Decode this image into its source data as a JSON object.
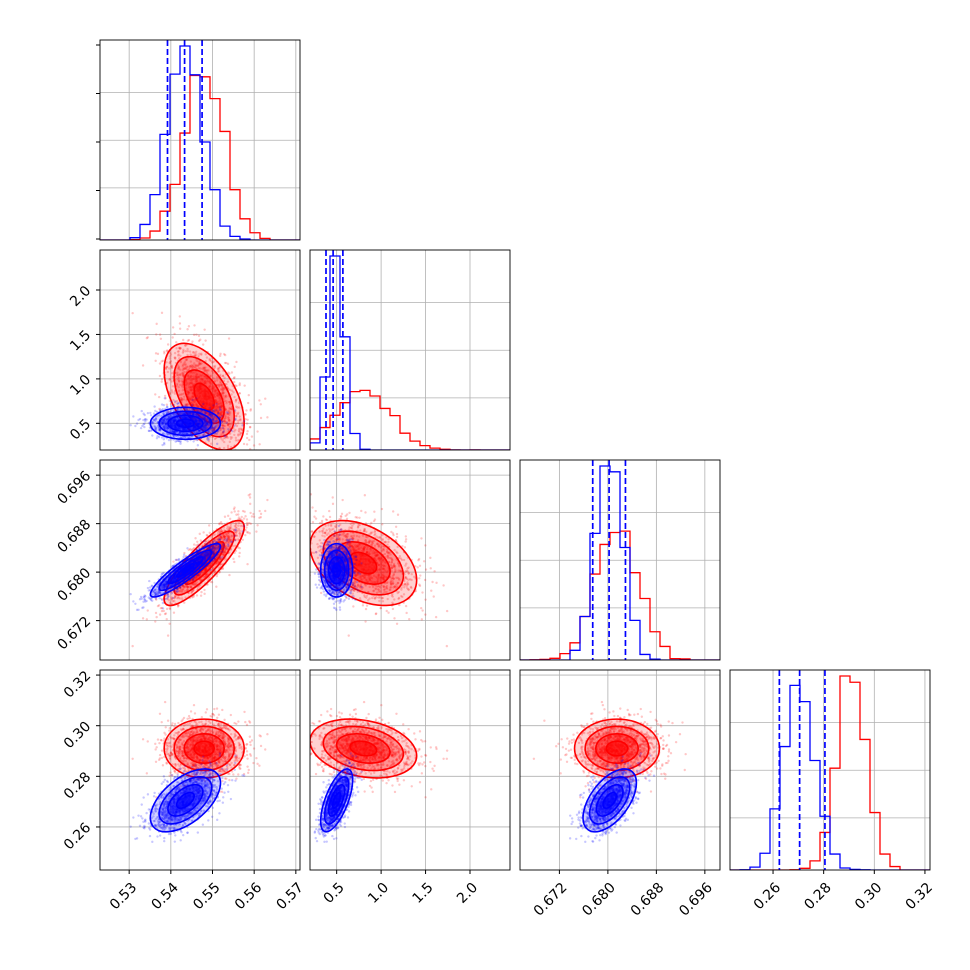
{
  "chart_data": {
    "type": "corner",
    "title": "",
    "grid": true,
    "colors": {
      "series_a": "#0000ff",
      "series_b": "#ff0000"
    },
    "parameters": [
      {
        "name": "",
        "range": [
          0.523,
          0.571
        ],
        "ticks": [
          0.53,
          0.54,
          0.55,
          0.56,
          0.57
        ],
        "tick_labels": [
          "0.53",
          "0.54",
          "0.55",
          "0.56",
          "0.57"
        ]
      },
      {
        "name": "",
        "range": [
          0.2,
          2.45
        ],
        "ticks": [
          0.5,
          1.0,
          1.5,
          2.0
        ],
        "tick_labels": [
          "0.5",
          "1.0",
          "1.5",
          "2.0"
        ]
      },
      {
        "name": "",
        "range": [
          0.6655,
          0.6985
        ],
        "ticks": [
          0.672,
          0.68,
          0.688,
          0.696
        ],
        "tick_labels": [
          "0.672",
          "0.680",
          "0.688",
          "0.696"
        ]
      },
      {
        "name": "",
        "range": [
          0.243,
          0.322
        ],
        "ticks": [
          0.26,
          0.28,
          0.3,
          0.32
        ],
        "tick_labels": [
          "0.26",
          "0.28",
          "0.30",
          "0.32"
        ]
      }
    ],
    "series": [
      {
        "name": "",
        "color": "#0000ff",
        "mean": [
          0.5435,
          0.5,
          0.6803,
          0.2705
        ],
        "sd": [
          0.0042,
          0.09,
          0.0022,
          0.0062
        ],
        "quantiles": [
          [
            0.5392,
            0.5433,
            0.5475
          ],
          [
            0.38,
            0.46,
            0.57
          ],
          [
            0.6775,
            0.6802,
            0.6829
          ],
          [
            0.2625,
            0.2705,
            0.2805
          ]
        ],
        "correlations": [
          [
            1,
            0,
            0.9,
            0.55
          ],
          [
            0,
            1,
            0,
            0.65
          ],
          [
            0.9,
            0,
            1,
            0.55
          ],
          [
            0.55,
            0.65,
            0.55,
            1
          ]
        ]
      },
      {
        "name": "",
        "color": "#ff0000",
        "mean": [
          0.548,
          0.8,
          0.6815,
          0.291
        ],
        "sd": [
          0.0048,
          0.3,
          0.0035,
          0.0058
        ],
        "correlations": [
          [
            1,
            -0.5,
            0.85,
            0
          ],
          [
            -0.5,
            1,
            -0.4,
            -0.25
          ],
          [
            0.85,
            -0.4,
            1,
            0
          ],
          [
            0,
            -0.25,
            0,
            1
          ]
        ]
      }
    ]
  }
}
